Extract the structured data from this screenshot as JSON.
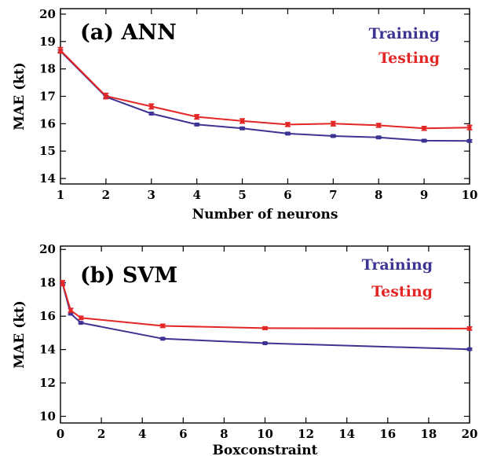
{
  "colors": {
    "training": "#3d3393",
    "testing": "#e32626"
  },
  "chart_data": [
    {
      "type": "line",
      "title": "(a) ANN",
      "xlabel": "Number of neurons",
      "ylabel": "MAE (kt)",
      "xlim": [
        1,
        10
      ],
      "ylim": [
        13.8,
        20.2
      ],
      "xticks": [
        1,
        2,
        3,
        4,
        5,
        6,
        7,
        8,
        9,
        10
      ],
      "yticks": [
        14,
        15,
        16,
        17,
        18,
        19,
        20
      ],
      "legend": "top-right",
      "grid": false,
      "series": [
        {
          "name": "Training",
          "x": [
            1,
            2,
            3,
            4,
            5,
            6,
            7,
            8,
            9,
            10
          ],
          "y": [
            18.65,
            16.98,
            16.37,
            15.97,
            15.83,
            15.64,
            15.55,
            15.5,
            15.38,
            15.37
          ],
          "err": [
            0.04,
            0.04,
            0.04,
            0.04,
            0.04,
            0.04,
            0.04,
            0.04,
            0.04,
            0.04
          ]
        },
        {
          "name": "Testing",
          "x": [
            1,
            2,
            3,
            4,
            5,
            6,
            7,
            8,
            9,
            10
          ],
          "y": [
            18.68,
            17.01,
            16.63,
            16.25,
            16.1,
            15.97,
            16.0,
            15.94,
            15.83,
            15.86
          ],
          "err": [
            0.1,
            0.1,
            0.09,
            0.08,
            0.08,
            0.07,
            0.08,
            0.07,
            0.07,
            0.08
          ]
        }
      ]
    },
    {
      "type": "line",
      "title": "(b) SVM",
      "xlabel": "Boxconstraint",
      "ylabel": "MAE (kt)",
      "xlim": [
        0,
        20
      ],
      "ylim": [
        9.6,
        20.2
      ],
      "xticks": [
        0,
        2,
        4,
        6,
        8,
        10,
        12,
        14,
        16,
        18,
        20
      ],
      "yticks": [
        10,
        12,
        14,
        16,
        18,
        20
      ],
      "legend": "top-right",
      "grid": false,
      "series": [
        {
          "name": "Training",
          "x": [
            0.1,
            0.5,
            1,
            5,
            10,
            20
          ],
          "y": [
            17.95,
            16.15,
            15.6,
            14.65,
            14.38,
            14.02
          ],
          "err": [
            0.06,
            0.05,
            0.05,
            0.05,
            0.05,
            0.05
          ]
        },
        {
          "name": "Testing",
          "x": [
            0.1,
            0.5,
            1,
            5,
            10,
            20
          ],
          "y": [
            17.98,
            16.35,
            15.9,
            15.42,
            15.28,
            15.26
          ],
          "err": [
            0.15,
            0.12,
            0.1,
            0.1,
            0.08,
            0.1
          ]
        }
      ]
    }
  ]
}
